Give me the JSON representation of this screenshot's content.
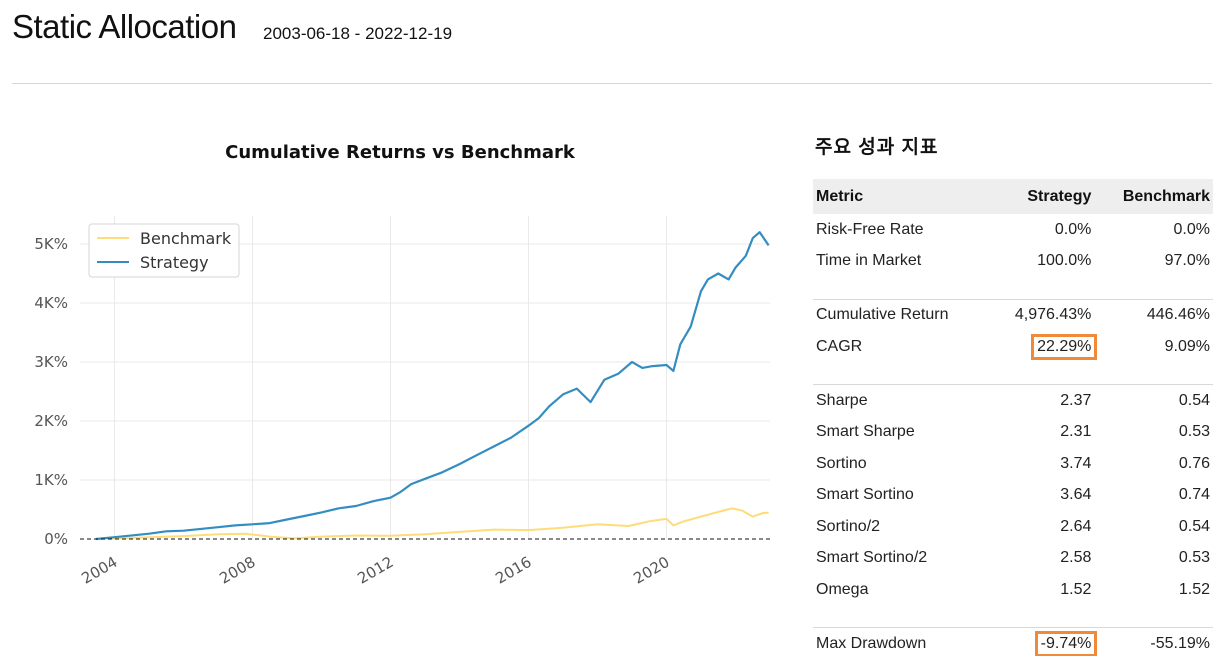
{
  "header": {
    "title": "Static Allocation",
    "date_range": "2003-06-18 - 2022-12-19"
  },
  "chart_data": {
    "type": "line",
    "title": "Cumulative Returns vs Benchmark",
    "xlabel": "",
    "ylabel": "",
    "x_ticks": [
      "2004",
      "2008",
      "2012",
      "2016",
      "2020"
    ],
    "y_ticks": [
      "0%",
      "1K%",
      "2K%",
      "3K%",
      "4K%",
      "5K%"
    ],
    "xlim": [
      2003.0,
      2023.0
    ],
    "ylim": [
      0,
      5000
    ],
    "legend_position": "top-left",
    "grid": true,
    "series": [
      {
        "name": "Benchmark",
        "color": "#fedd78",
        "x": [
          2003.46,
          2004.0,
          2005.0,
          2006.0,
          2007.0,
          2007.8,
          2008.5,
          2009.2,
          2010.0,
          2011.0,
          2012.0,
          2013.0,
          2014.0,
          2015.0,
          2016.0,
          2017.0,
          2018.0,
          2018.9,
          2019.5,
          2020.0,
          2020.2,
          2020.5,
          2021.0,
          2021.5,
          2021.9,
          2022.2,
          2022.5,
          2022.8,
          2022.96
        ],
        "y": [
          0,
          10,
          30,
          50,
          80,
          90,
          40,
          10,
          40,
          60,
          55,
          80,
          120,
          160,
          150,
          190,
          250,
          220,
          300,
          340,
          230,
          300,
          380,
          460,
          520,
          480,
          380,
          440,
          446
        ]
      },
      {
        "name": "Strategy",
        "color": "#348dc1",
        "x": [
          2003.46,
          2004.0,
          2005.0,
          2005.5,
          2006.0,
          2007.0,
          2007.5,
          2008.0,
          2008.5,
          2009.0,
          2009.5,
          2010.0,
          2010.5,
          2011.0,
          2011.5,
          2012.0,
          2012.3,
          2012.6,
          2013.0,
          2013.5,
          2014.0,
          2014.5,
          2015.0,
          2015.5,
          2016.0,
          2016.3,
          2016.6,
          2017.0,
          2017.4,
          2017.8,
          2018.2,
          2018.6,
          2019.0,
          2019.3,
          2019.6,
          2020.0,
          2020.2,
          2020.4,
          2020.7,
          2021.0,
          2021.2,
          2021.5,
          2021.8,
          2022.0,
          2022.3,
          2022.5,
          2022.7,
          2022.96
        ],
        "y": [
          0,
          30,
          90,
          130,
          140,
          200,
          230,
          250,
          270,
          330,
          390,
          450,
          520,
          560,
          640,
          700,
          800,
          930,
          1020,
          1130,
          1270,
          1420,
          1570,
          1720,
          1920,
          2050,
          2250,
          2450,
          2550,
          2320,
          2700,
          2800,
          3000,
          2900,
          2930,
          2950,
          2850,
          3300,
          3600,
          4200,
          4400,
          4500,
          4400,
          4600,
          4800,
          5100,
          5200,
          4976
        ]
      }
    ]
  },
  "metrics": {
    "title": "주요 성과 지표",
    "columns": [
      "Metric",
      "Strategy",
      "Benchmark"
    ],
    "highlight_color": "#ee8a3a",
    "groups": [
      [
        {
          "name": "Risk-Free Rate",
          "strategy": "0.0%",
          "benchmark": "0.0%"
        },
        {
          "name": "Time in Market",
          "strategy": "100.0%",
          "benchmark": "97.0%"
        }
      ],
      [
        {
          "name": "Cumulative Return",
          "strategy": "4,976.43%",
          "benchmark": "446.46%"
        },
        {
          "name": "CAGR",
          "strategy": "22.29%",
          "benchmark": "9.09%",
          "highlight": true
        }
      ],
      [
        {
          "name": "Sharpe",
          "strategy": "2.37",
          "benchmark": "0.54"
        },
        {
          "name": "Smart Sharpe",
          "strategy": "2.31",
          "benchmark": "0.53"
        },
        {
          "name": "Sortino",
          "strategy": "3.74",
          "benchmark": "0.76"
        },
        {
          "name": "Smart Sortino",
          "strategy": "3.64",
          "benchmark": "0.74"
        },
        {
          "name": "Sortino/2",
          "strategy": "2.64",
          "benchmark": "0.54"
        },
        {
          "name": "Smart Sortino/2",
          "strategy": "2.58",
          "benchmark": "0.53"
        },
        {
          "name": "Omega",
          "strategy": "1.52",
          "benchmark": "1.52"
        }
      ],
      [
        {
          "name": "Max Drawdown",
          "strategy": "-9.74%",
          "benchmark": "-55.19%",
          "highlight": true
        }
      ]
    ]
  }
}
